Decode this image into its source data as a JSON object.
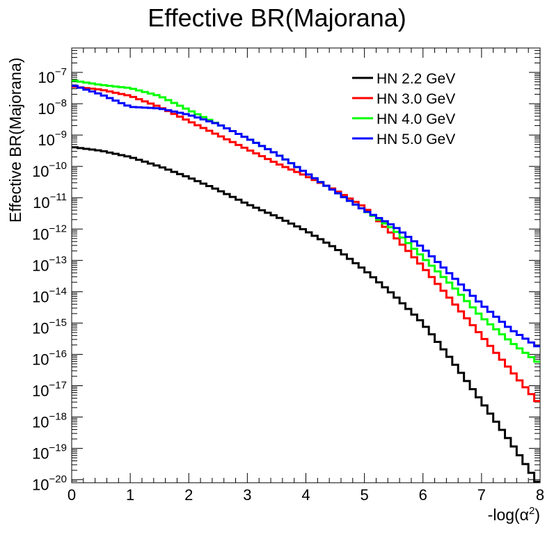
{
  "chart_data": {
    "type": "line",
    "title": "Effective BR(Majorana)",
    "xlabel_base": "-log(α",
    "xlabel_sup": "2",
    "xlabel_close": ")",
    "ylabel": "Effective BR(Majorana)",
    "xlim": [
      0,
      8
    ],
    "ylim": [
      8e-21,
      6e-07
    ],
    "yscale": "log",
    "grid": false,
    "legend_position": "top-right",
    "x_ticks": [
      "0",
      "1",
      "2",
      "3",
      "4",
      "5",
      "6",
      "7",
      "8"
    ],
    "y_ticks": [
      {
        "base": "10",
        "exp": "−7"
      },
      {
        "base": "10",
        "exp": "−8"
      },
      {
        "base": "10",
        "exp": "−9"
      },
      {
        "base": "10",
        "exp": "−10"
      },
      {
        "base": "10",
        "exp": "−11"
      },
      {
        "base": "10",
        "exp": "−12"
      },
      {
        "base": "10",
        "exp": "−13"
      },
      {
        "base": "10",
        "exp": "−14"
      },
      {
        "base": "10",
        "exp": "−15"
      },
      {
        "base": "10",
        "exp": "−16"
      },
      {
        "base": "10",
        "exp": "−17"
      },
      {
        "base": "10",
        "exp": "−18"
      },
      {
        "base": "10",
        "exp": "−19"
      },
      {
        "base": "10",
        "exp": "−20"
      }
    ],
    "x": [
      0,
      0.5,
      1,
      1.5,
      2,
      2.5,
      3,
      3.5,
      4,
      4.5,
      5,
      5.5,
      6,
      6.5,
      7,
      7.5,
      8
    ],
    "series": [
      {
        "name": "HN 2.2 GeV",
        "color": "#000000",
        "log10_values": [
          -9.38,
          -9.5,
          -9.7,
          -10.0,
          -10.35,
          -10.75,
          -11.2,
          -11.6,
          -12.05,
          -12.6,
          -13.3,
          -14.1,
          -15.0,
          -16.2,
          -17.5,
          -18.8,
          -20.2
        ]
      },
      {
        "name": "HN 3.0 GeV",
        "color": "#ff0000",
        "log10_values": [
          -7.45,
          -7.55,
          -7.75,
          -8.1,
          -8.55,
          -9.0,
          -9.45,
          -9.9,
          -10.3,
          -10.75,
          -11.3,
          -12.2,
          -13.2,
          -14.3,
          -15.4,
          -16.5,
          -17.6
        ]
      },
      {
        "name": "HN 4.0 GeV",
        "color": "#00ff00",
        "log10_values": [
          -7.25,
          -7.4,
          -7.5,
          -7.75,
          -8.2,
          -8.65,
          -9.1,
          -9.6,
          -10.2,
          -10.8,
          -11.4,
          -12.0,
          -12.9,
          -13.8,
          -14.8,
          -15.6,
          -16.3
        ]
      },
      {
        "name": "HN 5.0 GeV",
        "color": "#0000ff",
        "log10_values": [
          -7.4,
          -7.7,
          -8.1,
          -8.15,
          -8.35,
          -8.65,
          -9.1,
          -9.6,
          -10.2,
          -10.8,
          -11.4,
          -11.9,
          -12.6,
          -13.5,
          -14.4,
          -15.2,
          -15.8
        ]
      }
    ]
  }
}
